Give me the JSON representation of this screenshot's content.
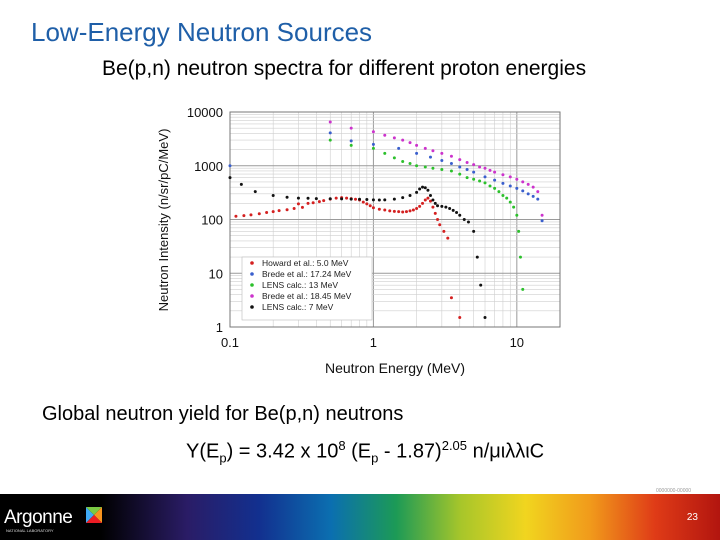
{
  "slide": {
    "title": "Low-Energy Neutron Sources",
    "subtitle": "Be(p,n) neutron spectra for different proton energies",
    "yield_label": "Global neutron yield for Be(p,n) neutrons",
    "formula": {
      "y": "Y(E",
      "sub1": "p",
      "mid1": ") = 3.42 x 10",
      "sup1": "8",
      "mid2": " (E",
      "sub2": "p",
      "mid3": " - 1.87)",
      "sup2": "2.05",
      "tail": " n/μιλλιC"
    },
    "slide_code": "0000000-00000",
    "page_number": "23",
    "logo_text": "Argonne",
    "logo_subtext": "NATIONAL LABORATORY"
  },
  "chart_data": {
    "type": "scatter",
    "xlabel": "Neutron Energy (MeV)",
    "ylabel": "Neutron Intensity (n/sr/pC/MeV)",
    "xscale": "log",
    "yscale": "log",
    "xlim": [
      0.1,
      20
    ],
    "ylim": [
      1,
      10000
    ],
    "x_ticks": [
      "0.1",
      "1",
      "10"
    ],
    "y_ticks": [
      "1",
      "10",
      "100",
      "1000",
      "10000"
    ],
    "grid": true,
    "legend_position": "lower-left",
    "series": [
      {
        "name": "Howard et al.: 5.0 MeV",
        "color": "#d42020",
        "points": [
          [
            0.11,
            115
          ],
          [
            0.125,
            118
          ],
          [
            0.14,
            122
          ],
          [
            0.16,
            128
          ],
          [
            0.18,
            135
          ],
          [
            0.2,
            140
          ],
          [
            0.22,
            146
          ],
          [
            0.25,
            152
          ],
          [
            0.28,
            160
          ],
          [
            0.3,
            195
          ],
          [
            0.32,
            168
          ],
          [
            0.35,
            200
          ],
          [
            0.38,
            205
          ],
          [
            0.42,
            215
          ],
          [
            0.45,
            225
          ],
          [
            0.5,
            240
          ],
          [
            0.55,
            250
          ],
          [
            0.6,
            255
          ],
          [
            0.65,
            250
          ],
          [
            0.7,
            245
          ],
          [
            0.75,
            238
          ],
          [
            0.8,
            230
          ],
          [
            0.85,
            210
          ],
          [
            0.9,
            195
          ],
          [
            0.95,
            180
          ],
          [
            1.0,
            165
          ],
          [
            1.1,
            155
          ],
          [
            1.2,
            150
          ],
          [
            1.3,
            145
          ],
          [
            1.4,
            142
          ],
          [
            1.5,
            140
          ],
          [
            1.6,
            138
          ],
          [
            1.7,
            140
          ],
          [
            1.8,
            145
          ],
          [
            1.9,
            150
          ],
          [
            2.0,
            160
          ],
          [
            2.1,
            175
          ],
          [
            2.2,
            200
          ],
          [
            2.3,
            230
          ],
          [
            2.4,
            250
          ],
          [
            2.5,
            220
          ],
          [
            2.6,
            170
          ],
          [
            2.7,
            130
          ],
          [
            2.8,
            100
          ],
          [
            2.9,
            80
          ],
          [
            3.1,
            60
          ],
          [
            3.3,
            45
          ],
          [
            3.5,
            3.5
          ],
          [
            4.0,
            1.5
          ]
        ]
      },
      {
        "name": "Brede et al.: 17.24 MeV",
        "color": "#3a5fcd",
        "points": [
          [
            0.1,
            1000
          ],
          [
            0.5,
            4100
          ],
          [
            0.7,
            2900
          ],
          [
            1.0,
            2500
          ],
          [
            1.5,
            2100
          ],
          [
            2.0,
            1700
          ],
          [
            2.5,
            1450
          ],
          [
            3.0,
            1250
          ],
          [
            3.5,
            1100
          ],
          [
            4.0,
            950
          ],
          [
            4.5,
            850
          ],
          [
            5.0,
            760
          ],
          [
            6.0,
            620
          ],
          [
            7.0,
            540
          ],
          [
            8.0,
            470
          ],
          [
            9.0,
            420
          ],
          [
            10.0,
            380
          ],
          [
            11.0,
            340
          ],
          [
            12.0,
            300
          ],
          [
            13.0,
            270
          ],
          [
            14.0,
            240
          ],
          [
            15.0,
            95
          ]
        ]
      },
      {
        "name": "LENS calc.: 13 MeV",
        "color": "#2cc02c",
        "points": [
          [
            0.5,
            3000
          ],
          [
            0.7,
            2400
          ],
          [
            1.0,
            2100
          ],
          [
            1.2,
            1700
          ],
          [
            1.4,
            1400
          ],
          [
            1.6,
            1200
          ],
          [
            1.8,
            1100
          ],
          [
            2.0,
            1000
          ],
          [
            2.3,
            950
          ],
          [
            2.6,
            900
          ],
          [
            3.0,
            850
          ],
          [
            3.5,
            800
          ],
          [
            4.0,
            700
          ],
          [
            4.5,
            600
          ],
          [
            5.0,
            560
          ],
          [
            5.5,
            520
          ],
          [
            6.0,
            480
          ],
          [
            6.5,
            420
          ],
          [
            7.0,
            380
          ],
          [
            7.5,
            330
          ],
          [
            8.0,
            280
          ],
          [
            8.5,
            250
          ],
          [
            9.0,
            210
          ],
          [
            9.5,
            170
          ],
          [
            10.0,
            120
          ],
          [
            10.3,
            60
          ],
          [
            10.6,
            20
          ],
          [
            11.0,
            5
          ]
        ]
      },
      {
        "name": "Brede et al.: 18.45 MeV",
        "color": "#cc33cc",
        "points": [
          [
            0.5,
            6500
          ],
          [
            0.7,
            5000
          ],
          [
            1.0,
            4300
          ],
          [
            1.2,
            3700
          ],
          [
            1.4,
            3300
          ],
          [
            1.6,
            3000
          ],
          [
            1.8,
            2700
          ],
          [
            2.0,
            2400
          ],
          [
            2.3,
            2100
          ],
          [
            2.6,
            1900
          ],
          [
            3.0,
            1700
          ],
          [
            3.5,
            1500
          ],
          [
            4.0,
            1300
          ],
          [
            4.5,
            1150
          ],
          [
            5.0,
            1050
          ],
          [
            5.5,
            950
          ],
          [
            6.0,
            900
          ],
          [
            6.5,
            820
          ],
          [
            7.0,
            760
          ],
          [
            8.0,
            680
          ],
          [
            9.0,
            620
          ],
          [
            10.0,
            560
          ],
          [
            11.0,
            500
          ],
          [
            12.0,
            450
          ],
          [
            13.0,
            400
          ],
          [
            14.0,
            330
          ],
          [
            15.0,
            120
          ]
        ]
      },
      {
        "name": "LENS calc.: 7 MeV",
        "color": "#111111",
        "points": [
          [
            0.1,
            600
          ],
          [
            0.12,
            450
          ],
          [
            0.15,
            330
          ],
          [
            0.2,
            280
          ],
          [
            0.25,
            260
          ],
          [
            0.3,
            250
          ],
          [
            0.35,
            248
          ],
          [
            0.4,
            245
          ],
          [
            0.5,
            243
          ],
          [
            0.6,
            242
          ],
          [
            0.7,
            240
          ],
          [
            0.8,
            238
          ],
          [
            0.9,
            235
          ],
          [
            1.0,
            232
          ],
          [
            1.1,
            230
          ],
          [
            1.2,
            232
          ],
          [
            1.4,
            240
          ],
          [
            1.6,
            255
          ],
          [
            1.8,
            280
          ],
          [
            2.0,
            320
          ],
          [
            2.1,
            370
          ],
          [
            2.2,
            400
          ],
          [
            2.3,
            390
          ],
          [
            2.4,
            350
          ],
          [
            2.5,
            280
          ],
          [
            2.6,
            230
          ],
          [
            2.7,
            200
          ],
          [
            2.8,
            180
          ],
          [
            3.0,
            175
          ],
          [
            3.2,
            170
          ],
          [
            3.4,
            160
          ],
          [
            3.6,
            148
          ],
          [
            3.8,
            135
          ],
          [
            4.0,
            120
          ],
          [
            4.3,
            100
          ],
          [
            4.6,
            90
          ],
          [
            5.0,
            60
          ],
          [
            5.3,
            20
          ],
          [
            5.6,
            6
          ],
          [
            6.0,
            1.5
          ]
        ]
      }
    ]
  }
}
